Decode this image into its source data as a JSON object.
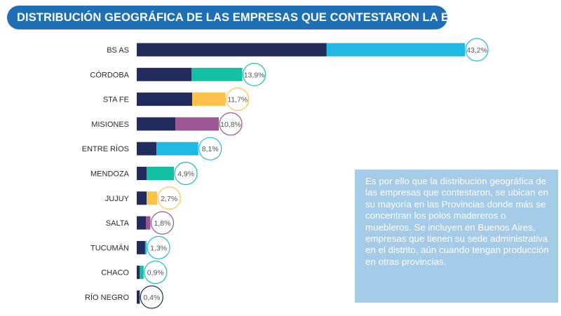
{
  "title": "DISTRIBUCIÓN GEOGRÁFICA DE LAS EMPRESAS QUE CONTESTARON LA ENCUESTA",
  "note": "Es por ello que la distribución geográfica de las empresas que contestaron, se ubican en su mayoría en las Provincias donde más se concentran los polos madereros o muebleros. Se incluyen en Buenos Aires, empresas que tienen su sede administrativa en el distrito, aún cuando tengan producción en otras provincias.",
  "colors": {
    "banner": "#1f6fb6",
    "dark_segment": "#212b5c",
    "cyan": "#1fb9e4",
    "teal": "#12c1a4",
    "yellow": "#fcc24a",
    "purple": "#9b5693",
    "navy": "#212b5c",
    "note_bg": "#a4cbe7"
  },
  "chart_data": {
    "type": "bar",
    "orientation": "horizontal",
    "title": "DISTRIBUCIÓN GEOGRÁFICA DE LAS EMPRESAS QUE CONTESTARON LA ENCUESTA",
    "xlabel": "",
    "ylabel": "",
    "xlim": [
      0,
      45
    ],
    "grid": false,
    "unit": "%",
    "categories": [
      "BS AS",
      "CÓRDOBA",
      "STA FE",
      "MISIONES",
      "ENTRE RÍOS",
      "MENDOZA",
      "JUJUY",
      "SALTA",
      "TUCUMÁN",
      "CHACO",
      "RÍO NEGRO"
    ],
    "values": [
      43.2,
      13.9,
      11.7,
      10.8,
      8.1,
      4.9,
      2.7,
      1.8,
      1.3,
      0.9,
      0.4
    ],
    "labels": [
      "43,2%",
      "13,9%",
      "11,7%",
      "10,8%",
      "8,1%",
      "4,9%",
      "2,7%",
      "1,8%",
      "1,3%",
      "0,9%",
      "0,4%"
    ],
    "dark_segment_values": [
      25,
      7.2,
      7.3,
      5.1,
      2.6,
      1.3,
      1.3,
      1.2,
      1.1,
      0.4,
      0.4
    ],
    "accent_colors": [
      "cyan",
      "teal",
      "yellow",
      "purple",
      "cyan",
      "teal",
      "yellow",
      "purple",
      "cyan",
      "teal",
      "navy"
    ]
  }
}
